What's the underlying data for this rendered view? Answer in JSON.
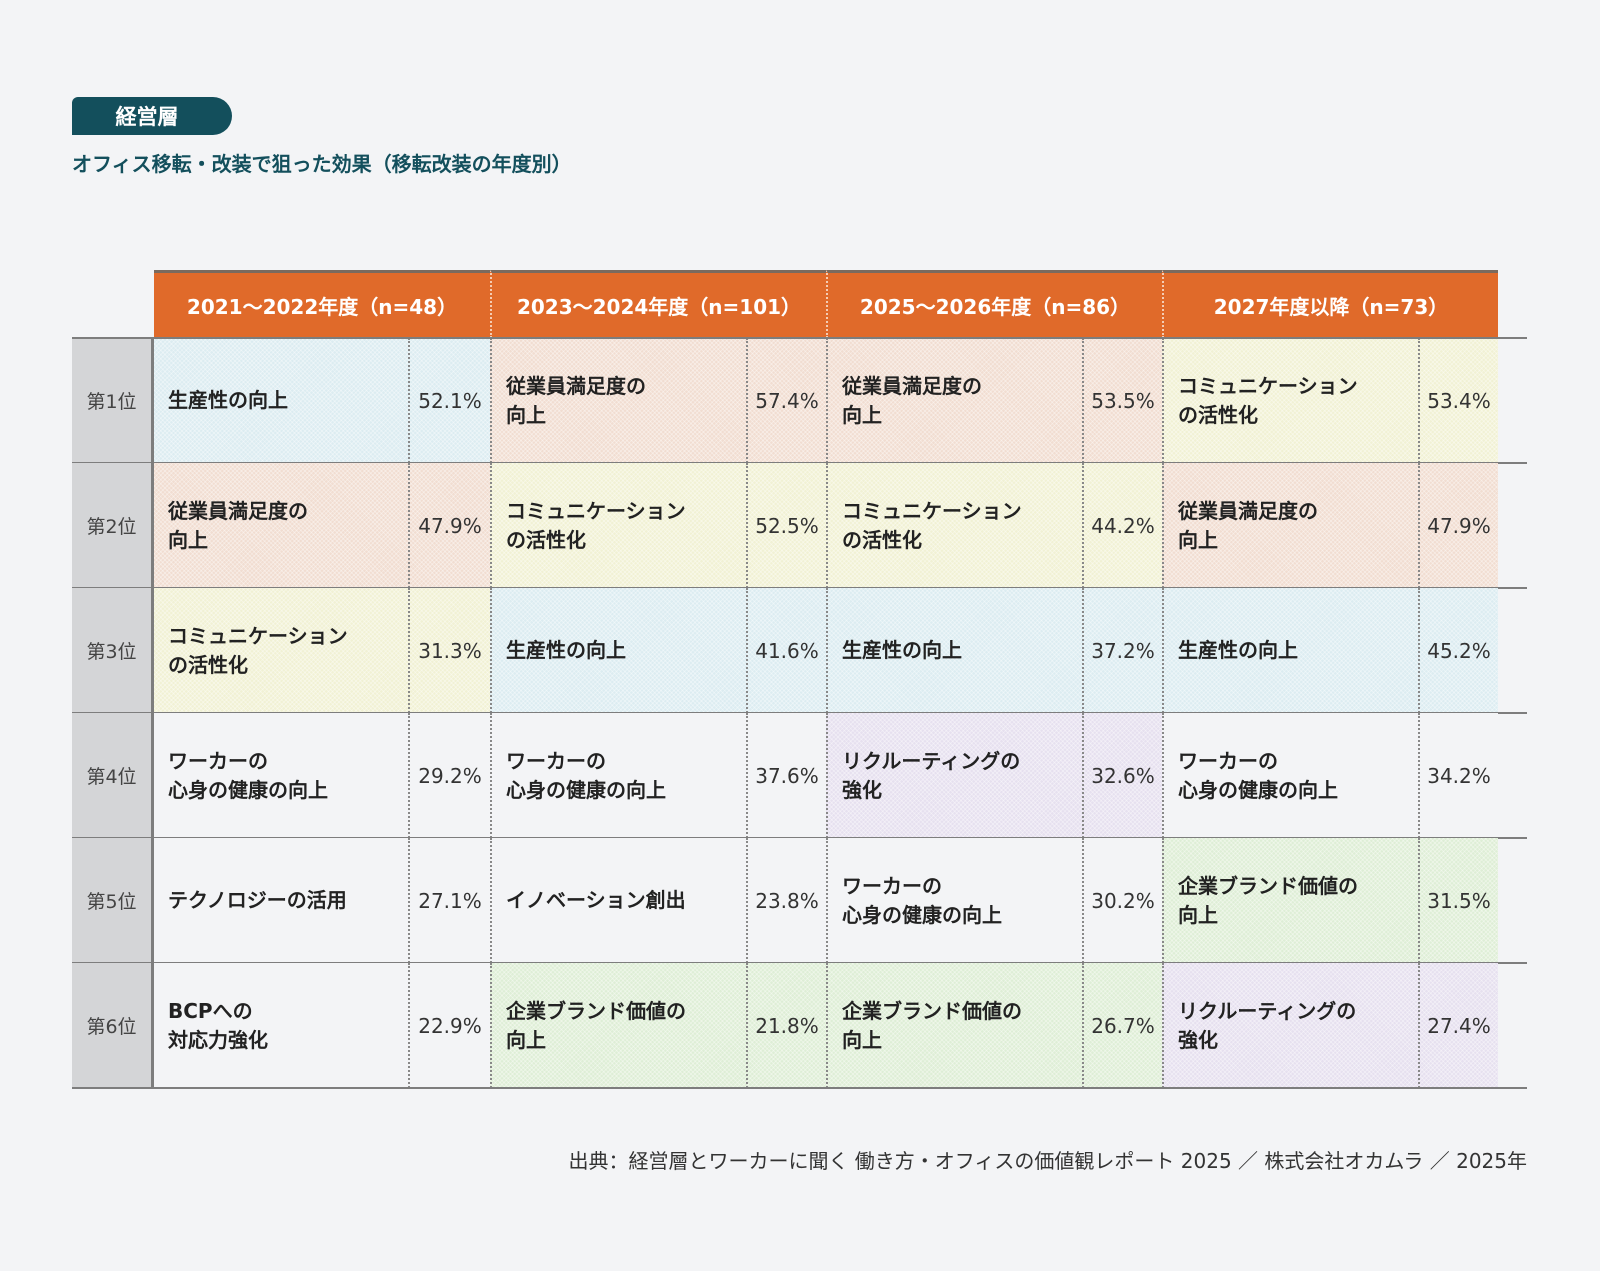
{
  "tag": "経営層",
  "title": "オフィス移転・改装で狙った効果（移転改装の年度別）",
  "source": "出典：経営層とワーカーに聞く 働き方・オフィスの価値観レポート 2025 ／ 株式会社オカムラ ／ 2025年",
  "colors": {
    "header": "#e06a2a",
    "productivity": "#dcecf1",
    "satisfaction": "#f1ddd1",
    "communication": "#f1f1d4",
    "recruiting": "#e6e0ef",
    "brand": "#deeed6",
    "none": "#f3f4f6"
  },
  "chart_data": {
    "type": "table",
    "title": "オフィス移転・改装で狙った効果（移転改装の年度別）",
    "columns": [
      "2021〜2022年度（n=48）",
      "2023〜2024年度（n=101）",
      "2025〜2026年度（n=86）",
      "2027年度以降（n=73）"
    ],
    "ranks": [
      "第1位",
      "第2位",
      "第3位",
      "第4位",
      "第5位",
      "第6位"
    ],
    "cells": [
      [
        {
          "label": "生産性の向上",
          "value": "52.1%",
          "cat": "productivity"
        },
        {
          "label": "従業員満足度の\n向上",
          "value": "57.4%",
          "cat": "satisfaction"
        },
        {
          "label": "従業員満足度の\n向上",
          "value": "53.5%",
          "cat": "satisfaction"
        },
        {
          "label": "コミュニケーション\nの活性化",
          "value": "53.4%",
          "cat": "communication"
        }
      ],
      [
        {
          "label": "従業員満足度の\n向上",
          "value": "47.9%",
          "cat": "satisfaction"
        },
        {
          "label": "コミュニケーション\nの活性化",
          "value": "52.5%",
          "cat": "communication"
        },
        {
          "label": "コミュニケーション\nの活性化",
          "value": "44.2%",
          "cat": "communication"
        },
        {
          "label": "従業員満足度の\n向上",
          "value": "47.9%",
          "cat": "satisfaction"
        }
      ],
      [
        {
          "label": "コミュニケーション\nの活性化",
          "value": "31.3%",
          "cat": "communication"
        },
        {
          "label": "生産性の向上",
          "value": "41.6%",
          "cat": "productivity"
        },
        {
          "label": "生産性の向上",
          "value": "37.2%",
          "cat": "productivity"
        },
        {
          "label": "生産性の向上",
          "value": "45.2%",
          "cat": "productivity"
        }
      ],
      [
        {
          "label": "ワーカーの\n心身の健康の向上",
          "value": "29.2%",
          "cat": "none"
        },
        {
          "label": "ワーカーの\n心身の健康の向上",
          "value": "37.6%",
          "cat": "none"
        },
        {
          "label": "リクルーティングの\n強化",
          "value": "32.6%",
          "cat": "recruiting"
        },
        {
          "label": "ワーカーの\n心身の健康の向上",
          "value": "34.2%",
          "cat": "none"
        }
      ],
      [
        {
          "label": "テクノロジーの活用",
          "value": "27.1%",
          "cat": "none"
        },
        {
          "label": "イノベーション創出",
          "value": "23.8%",
          "cat": "none"
        },
        {
          "label": "ワーカーの\n心身の健康の向上",
          "value": "30.2%",
          "cat": "none"
        },
        {
          "label": "企業ブランド価値の\n向上",
          "value": "31.5%",
          "cat": "brand"
        }
      ],
      [
        {
          "label": "BCPへの\n対応力強化",
          "value": "22.9%",
          "cat": "none"
        },
        {
          "label": "企業ブランド価値の\n向上",
          "value": "21.8%",
          "cat": "brand"
        },
        {
          "label": "企業ブランド価値の\n向上",
          "value": "26.7%",
          "cat": "brand"
        },
        {
          "label": "リクルーティングの\n強化",
          "value": "27.4%",
          "cat": "recruiting"
        }
      ]
    ]
  }
}
